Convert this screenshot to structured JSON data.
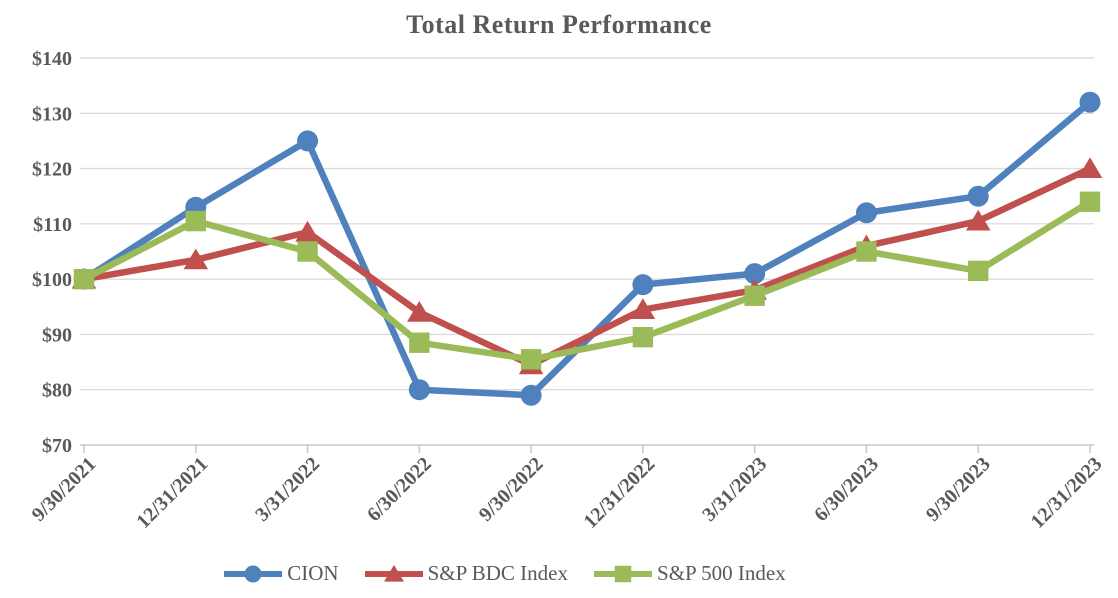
{
  "chart_data": {
    "type": "line",
    "title": "Total Return Performance",
    "categories": [
      "9/30/2021",
      "12/31/2021",
      "3/31/2022",
      "6/30/2022",
      "9/30/2022",
      "12/31/2022",
      "3/31/2023",
      "6/30/2023",
      "9/30/2023",
      "12/31/2023"
    ],
    "series": [
      {
        "name": "CION",
        "color": "#4F81BD",
        "marker": "circle",
        "values": [
          100,
          113,
          125,
          80,
          79,
          99,
          101,
          112,
          115,
          132
        ]
      },
      {
        "name": "S&P BDC Index",
        "color": "#C0504D",
        "marker": "triangle",
        "values": [
          100,
          103.5,
          108.5,
          94,
          84.5,
          94.5,
          98,
          106,
          110.5,
          120
        ]
      },
      {
        "name": "S&P 500 Index",
        "color": "#9BBB59",
        "marker": "square",
        "values": [
          100,
          110.5,
          105,
          88.5,
          85.5,
          89.5,
          97,
          105,
          101.5,
          114
        ]
      }
    ],
    "y_ticks": [
      {
        "value": 70,
        "label": "$70"
      },
      {
        "value": 80,
        "label": "$80"
      },
      {
        "value": 90,
        "label": "$90"
      },
      {
        "value": 100,
        "label": "$100"
      },
      {
        "value": 110,
        "label": "$110"
      },
      {
        "value": 120,
        "label": "$120"
      },
      {
        "value": 130,
        "label": "$130"
      },
      {
        "value": 140,
        "label": "$140"
      }
    ],
    "ylim": [
      70,
      140
    ],
    "grid": true,
    "legend_position": "bottom",
    "colors": {
      "text": "#595959",
      "gridline": "#DCDCDC",
      "axis": "#C9C9C9",
      "background": "#FFFFFF"
    }
  }
}
